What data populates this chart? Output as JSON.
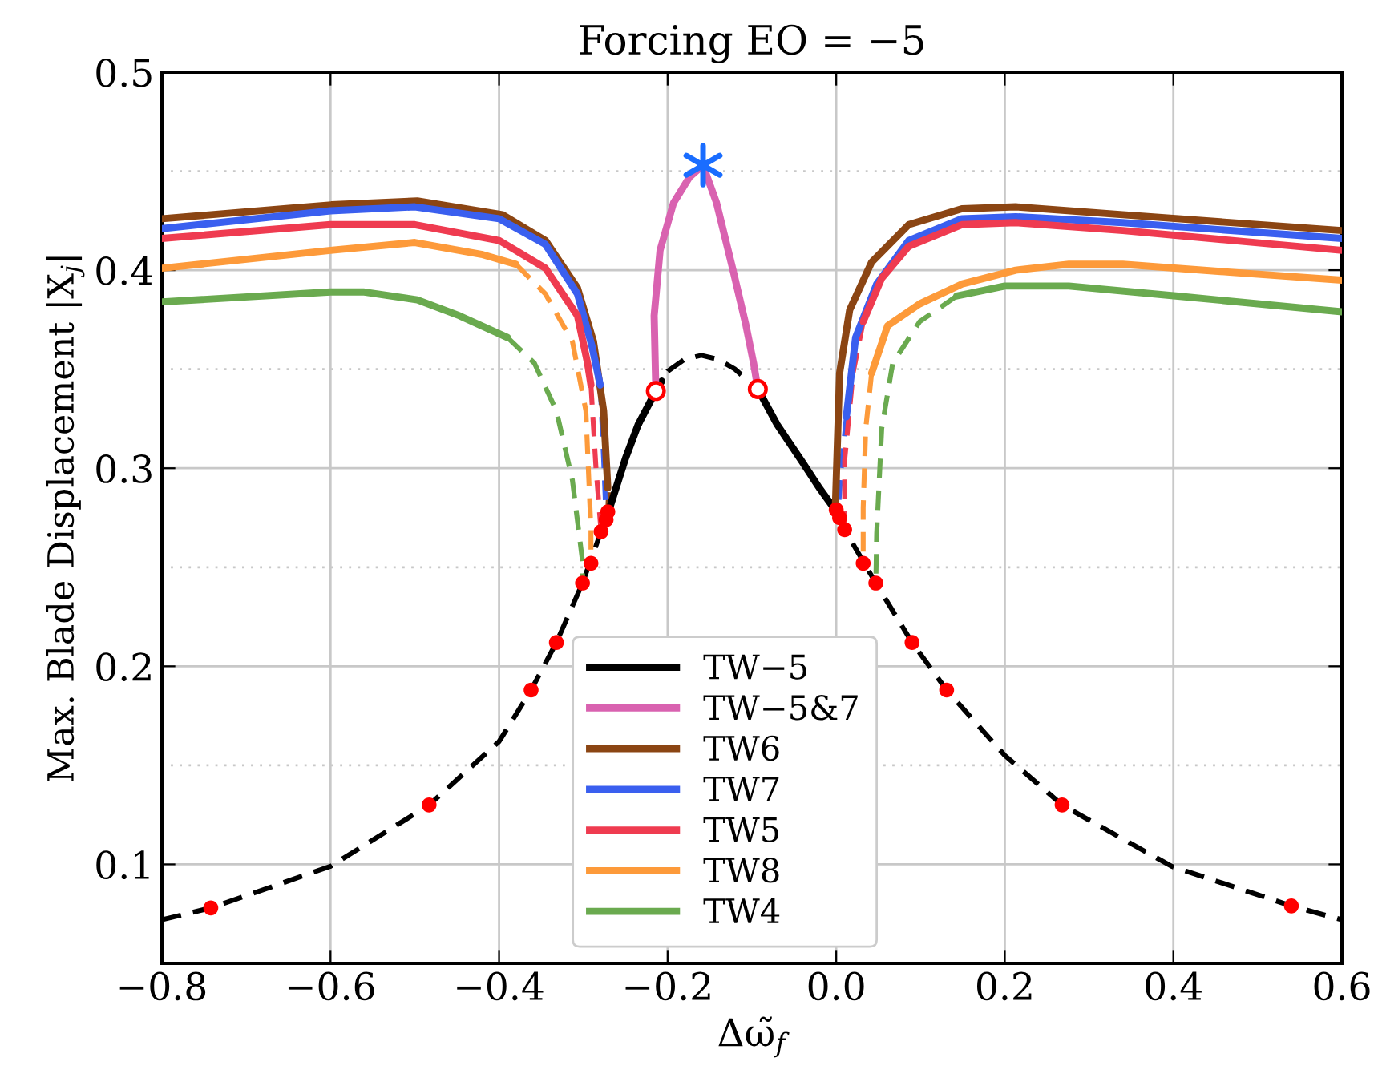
{
  "chart_data": {
    "type": "line",
    "title": "Forcing EO = −5",
    "xlabel": "Δω̃$_{f}$",
    "ylabel": "Max. Blade Displacement |X$_{j}$|",
    "xlim": [
      -0.8,
      0.6
    ],
    "ylim": [
      0.05,
      0.5
    ],
    "xticks": [
      {
        "value": -0.8,
        "label": "−0.8"
      },
      {
        "value": -0.6,
        "label": "−0.6"
      },
      {
        "value": -0.4,
        "label": "−0.4"
      },
      {
        "value": -0.2,
        "label": "−0.2"
      },
      {
        "value": 0.0,
        "label": "0.0"
      },
      0.2,
      0.4,
      0.6
    ],
    "yticks": [
      0.1,
      0.2,
      0.3,
      0.4,
      0.5
    ],
    "grid": true,
    "legend": "bottom",
    "series": [
      {
        "type": "line",
        "line_style": "dashed",
        "color": "#000000",
        "x": [
          -0.8,
          -0.742,
          -0.6,
          -0.483,
          -0.4,
          -0.362,
          -0.332,
          -0.301,
          -0.279,
          -0.271,
          -0.25,
          -0.22,
          -0.2,
          -0.18,
          -0.16,
          -0.14,
          -0.12,
          -0.094,
          -0.07,
          -0.04,
          -0.02,
          0.0,
          0.01,
          0.047,
          0.09,
          0.131,
          0.2,
          0.268,
          0.398,
          0.54,
          0.6
        ],
        "values": [
          0.072,
          0.078,
          0.099,
          0.13,
          0.162,
          0.188,
          0.212,
          0.242,
          0.268,
          0.278,
          0.305,
          0.336,
          0.349,
          0.355,
          0.357,
          0.355,
          0.35,
          0.34,
          0.322,
          0.303,
          0.29,
          0.279,
          0.269,
          0.242,
          0.212,
          0.188,
          0.155,
          0.13,
          0.099,
          0.079,
          0.072
        ]
      },
      {
        "type": "line",
        "line_style": "dashed",
        "color": "#8b4513",
        "x": [
          -0.271,
          -0.27
        ],
        "values": [
          0.278,
          0.29
        ]
      },
      {
        "type": "line",
        "line_style": "dashed",
        "color": "#3a5fef",
        "x": [
          -0.28,
          -0.276,
          -0.273,
          null,
          0.012,
          0.006,
          0.002
        ],
        "values": [
          0.342,
          0.305,
          0.274,
          null,
          0.326,
          0.3,
          0.276
        ]
      },
      {
        "type": "line",
        "line_style": "dashed",
        "color": "#ef3b50",
        "x": [
          -0.291,
          -0.285,
          -0.279,
          null,
          0.032,
          0.02,
          0.01,
          0.01
        ],
        "values": [
          0.342,
          0.3,
          0.268,
          null,
          0.374,
          0.348,
          0.304,
          0.269
        ]
      },
      {
        "type": "line",
        "line_style": "dashed",
        "color": "#fd9a3a",
        "x": [
          -0.38,
          -0.345,
          -0.313,
          -0.297,
          -0.291,
          -0.291,
          null,
          0.042,
          0.035,
          0.032,
          0.032
        ],
        "values": [
          0.403,
          0.388,
          0.364,
          0.329,
          0.269,
          0.252,
          null,
          0.348,
          0.32,
          0.28,
          0.252
        ]
      },
      {
        "type": "line",
        "line_style": "dashed",
        "color": "#6aaa4f",
        "x": [
          -0.39,
          -0.358,
          -0.332,
          -0.313,
          -0.301,
          -0.301,
          null,
          0.143,
          0.099,
          0.067,
          0.054,
          0.048,
          0.047
        ],
        "values": [
          0.366,
          0.353,
          0.329,
          0.294,
          0.253,
          0.242,
          null,
          0.387,
          0.374,
          0.353,
          0.32,
          0.267,
          0.242
        ]
      },
      {
        "type": "line",
        "name": "TW−5",
        "color": "#000000",
        "x": [
          -0.271,
          -0.25,
          -0.235,
          -0.214,
          -0.207,
          null,
          -0.093,
          -0.07,
          -0.04,
          -0.02,
          -0.003
        ],
        "values": [
          0.277,
          0.305,
          0.322,
          0.339,
          0.344,
          null,
          0.34,
          0.322,
          0.303,
          0.29,
          0.28
        ]
      },
      {
        "type": "line",
        "name": "TW−5&7",
        "color": "#d962b0",
        "x": [
          -0.214,
          -0.216,
          -0.209,
          -0.193,
          -0.174,
          -0.158,
          -0.142,
          -0.123,
          -0.107,
          -0.098,
          -0.093
        ],
        "values": [
          0.339,
          0.377,
          0.41,
          0.434,
          0.447,
          0.453,
          0.434,
          0.401,
          0.372,
          0.353,
          0.34
        ]
      },
      {
        "type": "line",
        "name": "TW6",
        "color": "#8b4513",
        "x": [
          -0.8,
          -0.599,
          -0.497,
          -0.396,
          -0.345,
          -0.307,
          -0.288,
          -0.276,
          -0.271,
          null,
          -0.001,
          0.004,
          0.016,
          0.042,
          0.086,
          0.149,
          0.213,
          0.34,
          0.6
        ],
        "values": [
          0.426,
          0.433,
          0.435,
          0.428,
          0.415,
          0.391,
          0.364,
          0.329,
          0.29,
          null,
          0.28,
          0.348,
          0.38,
          0.404,
          0.423,
          0.431,
          0.432,
          0.428,
          0.42
        ]
      },
      {
        "type": "line",
        "name": "TW7",
        "color": "#3a5fef",
        "x": [
          -0.8,
          -0.6,
          -0.5,
          -0.4,
          -0.345,
          -0.307,
          -0.29,
          -0.28,
          null,
          0.012,
          0.023,
          0.048,
          0.086,
          0.149,
          0.213,
          0.34,
          0.6
        ],
        "values": [
          0.421,
          0.43,
          0.432,
          0.426,
          0.413,
          0.388,
          0.362,
          0.342,
          null,
          0.326,
          0.366,
          0.393,
          0.415,
          0.426,
          0.427,
          0.424,
          0.416
        ]
      },
      {
        "type": "line",
        "name": "TW5",
        "color": "#ef3b50",
        "x": [
          -0.8,
          -0.6,
          -0.5,
          -0.4,
          -0.345,
          -0.307,
          -0.295,
          -0.291,
          null,
          0.032,
          0.054,
          0.086,
          0.149,
          0.213,
          0.34,
          0.6
        ],
        "values": [
          0.416,
          0.423,
          0.423,
          0.415,
          0.401,
          0.377,
          0.353,
          0.342,
          null,
          0.374,
          0.396,
          0.412,
          0.423,
          0.424,
          0.42,
          0.41
        ]
      },
      {
        "type": "line",
        "name": "TW8",
        "color": "#fd9a3a",
        "x": [
          -0.8,
          -0.6,
          -0.5,
          -0.421,
          -0.38,
          null,
          0.042,
          0.061,
          0.099,
          0.149,
          0.213,
          0.276,
          0.34,
          0.467,
          0.6
        ],
        "values": [
          0.401,
          0.41,
          0.414,
          0.408,
          0.403,
          null,
          0.348,
          0.372,
          0.383,
          0.393,
          0.4,
          0.403,
          0.403,
          0.399,
          0.395
        ]
      },
      {
        "type": "line",
        "name": "TW4",
        "color": "#6aaa4f",
        "x": [
          -0.8,
          -0.6,
          -0.56,
          -0.497,
          -0.447,
          -0.39,
          null,
          0.143,
          0.2,
          0.276,
          0.403,
          0.6
        ],
        "values": [
          0.384,
          0.389,
          0.389,
          0.385,
          0.377,
          0.366,
          null,
          0.387,
          0.392,
          0.392,
          0.387,
          0.379
        ]
      },
      {
        "type": "scatter",
        "marker": "circle",
        "color": "#ff0000",
        "x": [
          -0.742,
          -0.483,
          -0.362,
          -0.332,
          -0.301,
          -0.291,
          -0.279,
          -0.273,
          -0.271,
          0.0,
          0.004,
          0.01,
          0.032,
          0.047,
          0.09,
          0.131,
          0.268,
          0.54
        ],
        "values": [
          0.078,
          0.13,
          0.188,
          0.212,
          0.242,
          0.252,
          0.268,
          0.274,
          0.278,
          0.279,
          0.275,
          0.269,
          0.252,
          0.242,
          0.212,
          0.188,
          0.13,
          0.079
        ]
      },
      {
        "type": "scatter",
        "marker": "circle",
        "color": "#ff0000",
        "x": [
          -0.214,
          -0.093
        ],
        "values": [
          0.339,
          0.34
        ]
      },
      {
        "type": "scatter",
        "marker": "cross",
        "color": "#1a6dff",
        "x": [
          -0.158
        ],
        "values": [
          0.453
        ]
      }
    ]
  }
}
